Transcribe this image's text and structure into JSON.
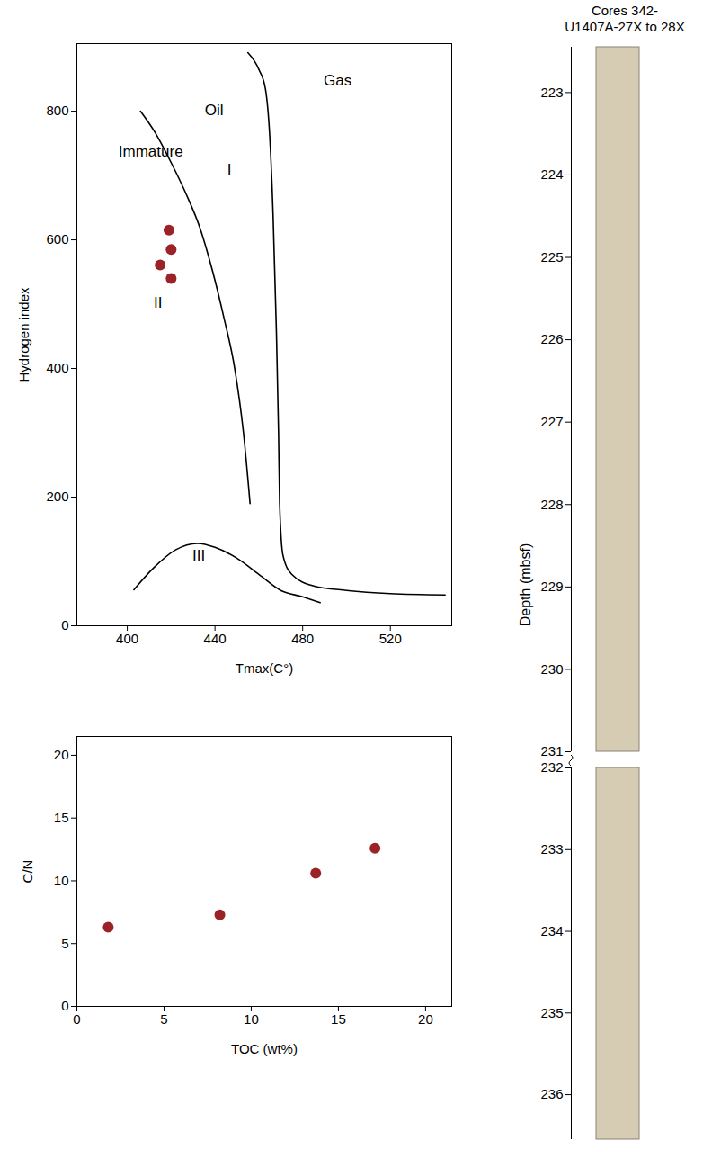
{
  "chart_data": [
    {
      "type": "scatter",
      "x_label": "Tmax(C°)",
      "y_label": "Hydrogen index",
      "xlim": [
        377,
        548
      ],
      "xticks": [
        400,
        440,
        480,
        520
      ],
      "ylim": [
        0,
        905
      ],
      "yticks": [
        0,
        200,
        400,
        600,
        800
      ],
      "x": [
        419,
        420,
        415,
        420
      ],
      "y": [
        615,
        585,
        561,
        540
      ],
      "color": "#9b2226",
      "marker": "circle",
      "lines": [
        {
          "color": "#000000",
          "x": [
            406,
            413,
            420,
            427,
            433,
            439,
            444,
            449,
            453,
            456
          ],
          "y": [
            800,
            765,
            720,
            670,
            620,
            550,
            480,
            400,
            300,
            190
          ]
        },
        {
          "color": "#000000",
          "x": [
            455,
            460,
            463,
            465,
            466.5,
            468,
            469,
            469.5,
            471,
            475,
            485,
            500,
            520,
            545
          ],
          "y": [
            891,
            865,
            835,
            760,
            640,
            460,
            300,
            190,
            110,
            80,
            62,
            55,
            50,
            48
          ]
        },
        {
          "color": "#000000",
          "x": [
            403,
            412,
            422,
            432,
            440,
            450,
            460,
            470,
            480,
            488
          ],
          "y": [
            56,
            90,
            118,
            128,
            122,
            105,
            80,
            55,
            45,
            36
          ]
        }
      ],
      "annotations": [
        {
          "text": "Oil",
          "x": 439.6,
          "y": 801
        },
        {
          "text": "Gas",
          "x": 496,
          "y": 848
        },
        {
          "text": "Immature",
          "x": 410.7,
          "y": 737
        },
        {
          "text": "I",
          "x": 446.6,
          "y": 709
        },
        {
          "text": "II",
          "x": 414,
          "y": 502
        },
        {
          "text": "III",
          "x": 432.6,
          "y": 109
        }
      ]
    },
    {
      "type": "scatter",
      "x_label": "TOC (wt%)",
      "y_label": "C/N",
      "xlim": [
        0,
        21.5
      ],
      "xticks": [
        0,
        5,
        10,
        15,
        20
      ],
      "ylim": [
        0,
        21.5
      ],
      "yticks": [
        0,
        5,
        10,
        15,
        20
      ],
      "x": [
        1.8,
        8.2,
        13.7,
        17.1
      ],
      "y": [
        6.3,
        7.3,
        10.6,
        12.6
      ],
      "color": "#9b2226",
      "marker": "circle"
    },
    {
      "type": "core_depth",
      "title": "Cores 342-U1407A-27X to 28X",
      "y_label": "Depth (mbsf)",
      "segments": [
        {
          "ylim": [
            222.45,
            231
          ],
          "yticks": [
            223,
            224,
            225,
            226,
            227,
            228,
            229,
            230,
            231
          ]
        },
        {
          "ylim": [
            232,
            236.55
          ],
          "yticks": [
            232,
            233,
            234,
            235,
            236
          ]
        }
      ]
    }
  ]
}
